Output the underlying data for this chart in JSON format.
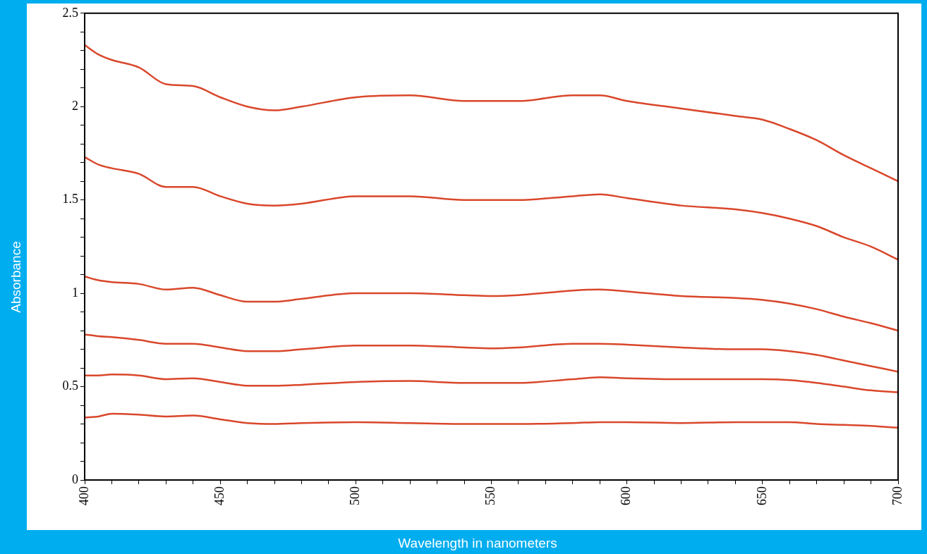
{
  "chart_data": {
    "type": "line",
    "xlabel": "Wavelength in nanometers",
    "ylabel": "Absorbance",
    "legend": false,
    "marker": "none",
    "line_style": "solid",
    "x": [
      400,
      405,
      410,
      420,
      430,
      440,
      450,
      460,
      470,
      480,
      500,
      520,
      540,
      550,
      560,
      580,
      590,
      600,
      620,
      640,
      650,
      660,
      670,
      680,
      690,
      700
    ],
    "xlim": [
      400,
      700
    ],
    "ylim": [
      0,
      2.5
    ],
    "xticks": [
      400,
      {
        "value": 410,
        "label": null
      },
      {
        "value": 420,
        "label": null
      },
      {
        "value": 430,
        "label": null
      },
      {
        "value": 440,
        "label": null
      },
      450,
      {
        "value": 460,
        "label": null
      },
      {
        "value": 470,
        "label": null
      },
      {
        "value": 480,
        "label": null
      },
      {
        "value": 490,
        "label": null
      },
      500,
      {
        "value": 510,
        "label": null
      },
      {
        "value": 520,
        "label": null
      },
      {
        "value": 530,
        "label": null
      },
      {
        "value": 540,
        "label": null
      },
      550,
      {
        "value": 560,
        "label": null
      },
      {
        "value": 570,
        "label": null
      },
      {
        "value": 580,
        "label": null
      },
      {
        "value": 590,
        "label": null
      },
      600,
      {
        "value": 610,
        "label": null
      },
      {
        "value": 620,
        "label": null
      },
      {
        "value": 630,
        "label": null
      },
      {
        "value": 640,
        "label": null
      },
      650,
      {
        "value": 660,
        "label": null
      },
      {
        "value": 670,
        "label": null
      },
      {
        "value": 680,
        "label": null
      },
      {
        "value": 690,
        "label": null
      },
      700
    ],
    "yticks": [
      0,
      {
        "value": 0.1,
        "label": null
      },
      {
        "value": 0.2,
        "label": null
      },
      {
        "value": 0.3,
        "label": null
      },
      {
        "value": 0.4,
        "label": null
      },
      0.5,
      {
        "value": 0.6,
        "label": null
      },
      {
        "value": 0.7,
        "label": null
      },
      {
        "value": 0.8,
        "label": null
      },
      {
        "value": 0.9,
        "label": null
      },
      1,
      {
        "value": 1.1,
        "label": null
      },
      {
        "value": 1.2,
        "label": null
      },
      {
        "value": 1.3,
        "label": null
      },
      {
        "value": 1.4,
        "label": null
      },
      1.5,
      {
        "value": 1.6,
        "label": null
      },
      {
        "value": 1.7,
        "label": null
      },
      {
        "value": 1.8,
        "label": null
      },
      {
        "value": 1.9,
        "label": null
      },
      2,
      {
        "value": 2.1,
        "label": null
      },
      {
        "value": 2.2,
        "label": null
      },
      {
        "value": 2.3,
        "label": null
      },
      {
        "value": 2.4,
        "label": null
      },
      2.5
    ],
    "series": [
      {
        "color": "#d9472b",
        "values": [
          2.33,
          2.28,
          2.25,
          2.21,
          2.12,
          2.11,
          2.05,
          2.0,
          1.98,
          2.0,
          2.05,
          2.06,
          2.03,
          2.03,
          2.03,
          2.06,
          2.06,
          2.03,
          1.99,
          1.95,
          1.93,
          1.88,
          1.82,
          1.74,
          1.67,
          1.6
        ]
      },
      {
        "color": "#d9472b",
        "values": [
          1.73,
          1.69,
          1.67,
          1.64,
          1.57,
          1.57,
          1.52,
          1.48,
          1.47,
          1.48,
          1.52,
          1.52,
          1.5,
          1.5,
          1.5,
          1.52,
          1.53,
          1.51,
          1.47,
          1.45,
          1.43,
          1.4,
          1.36,
          1.3,
          1.25,
          1.18
        ]
      },
      {
        "color": "#d9472b",
        "values": [
          1.09,
          1.07,
          1.06,
          1.05,
          1.02,
          1.03,
          0.99,
          0.955,
          0.955,
          0.97,
          1.0,
          1.0,
          0.99,
          0.985,
          0.99,
          1.015,
          1.02,
          1.01,
          0.985,
          0.975,
          0.965,
          0.945,
          0.915,
          0.875,
          0.84,
          0.8
        ]
      },
      {
        "color": "#d9472b",
        "values": [
          0.78,
          0.77,
          0.765,
          0.75,
          0.73,
          0.73,
          0.71,
          0.69,
          0.69,
          0.7,
          0.72,
          0.72,
          0.71,
          0.705,
          0.71,
          0.73,
          0.73,
          0.725,
          0.71,
          0.7,
          0.7,
          0.69,
          0.67,
          0.64,
          0.61,
          0.58
        ]
      },
      {
        "color": "#d9472b",
        "values": [
          0.56,
          0.56,
          0.565,
          0.56,
          0.54,
          0.545,
          0.525,
          0.505,
          0.505,
          0.51,
          0.525,
          0.53,
          0.52,
          0.52,
          0.52,
          0.54,
          0.55,
          0.545,
          0.54,
          0.54,
          0.54,
          0.535,
          0.52,
          0.5,
          0.48,
          0.47
        ]
      },
      {
        "color": "#d9472b",
        "values": [
          0.335,
          0.34,
          0.355,
          0.35,
          0.34,
          0.345,
          0.325,
          0.305,
          0.3,
          0.305,
          0.31,
          0.305,
          0.3,
          0.3,
          0.3,
          0.305,
          0.31,
          0.31,
          0.305,
          0.31,
          0.31,
          0.31,
          0.3,
          0.295,
          0.29,
          0.28
        ]
      }
    ]
  }
}
